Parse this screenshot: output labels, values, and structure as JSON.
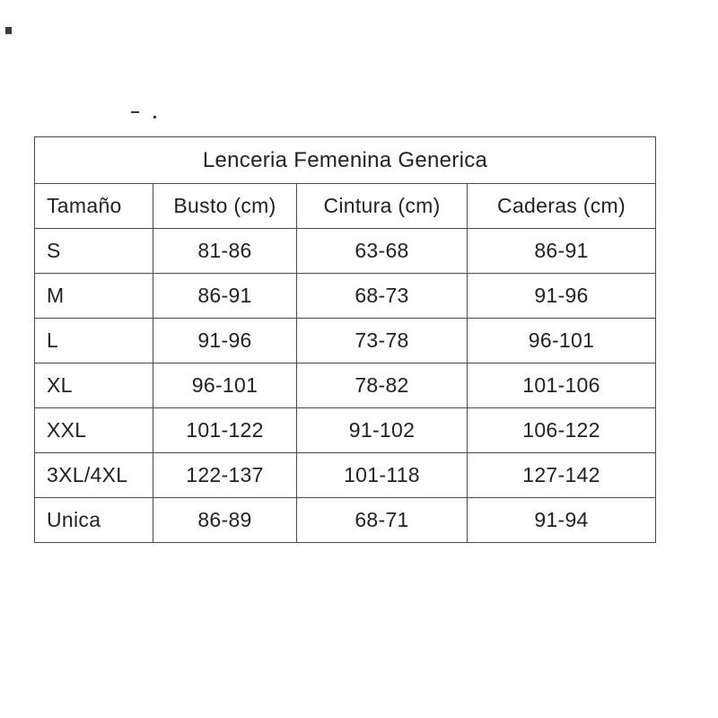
{
  "page": {
    "background_color": "#ffffff",
    "text_color": "#222222",
    "border_color": "#4a4a4a"
  },
  "chart_data": {
    "type": "table",
    "title": "Lenceria Femenina Generica",
    "columns": [
      "Tamaño",
      "Busto (cm)",
      "Cintura (cm)",
      "Caderas (cm)"
    ],
    "rows": [
      [
        "S",
        "81-86",
        "63-68",
        "86-91"
      ],
      [
        "M",
        "86-91",
        "68-73",
        "91-96"
      ],
      [
        "L",
        "91-96",
        "73-78",
        "96-101"
      ],
      [
        "XL",
        "96-101",
        "78-82",
        "101-106"
      ],
      [
        "XXL",
        "101-122",
        "91-102",
        "106-122"
      ],
      [
        "3XL/4XL",
        "122-137",
        "101-118",
        "127-142"
      ],
      [
        "Unica",
        "86-89",
        "68-71",
        "91-94"
      ]
    ],
    "units": "cm",
    "legend_position": "none",
    "grid": "on"
  }
}
